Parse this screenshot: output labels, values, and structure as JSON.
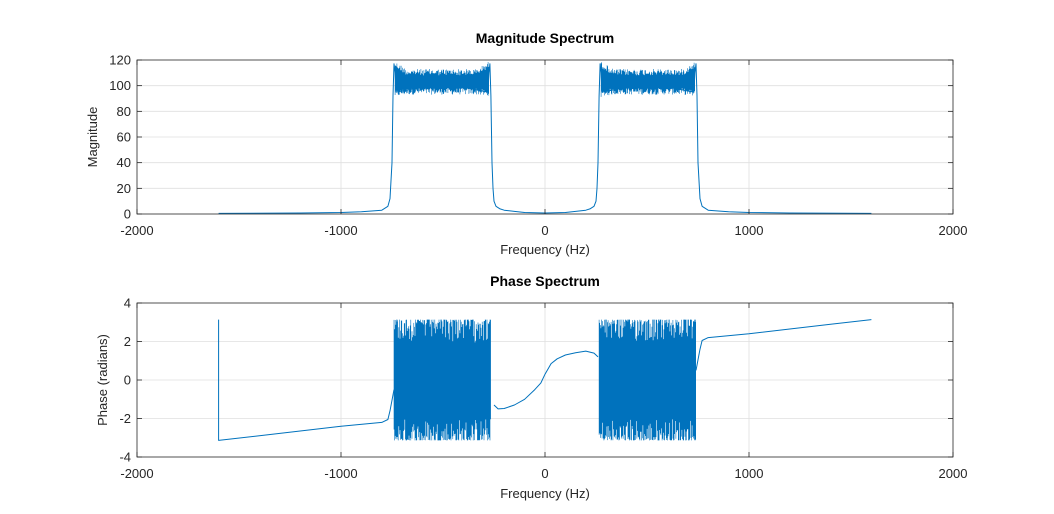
{
  "chart_data": [
    {
      "type": "line",
      "title": "Magnitude Spectrum",
      "xlabel": "Frequency (Hz)",
      "ylabel": "Magnitude",
      "xlim": [
        -2000,
        2000
      ],
      "ylim": [
        0,
        120
      ],
      "xticks": [
        -2000,
        -1000,
        0,
        1000,
        2000
      ],
      "yticks": [
        0,
        20,
        40,
        60,
        80,
        100,
        120
      ],
      "xtick_labels": [
        "-2000",
        "-1000",
        "0",
        "1000",
        "2000"
      ],
      "ytick_labels": [
        "0",
        "20",
        "40",
        "60",
        "80",
        "100",
        "120"
      ],
      "grid": true,
      "color": "#0072BD",
      "series": [
        {
          "x": [
            -1600,
            -1200,
            -1000,
            -900,
            -800,
            -770,
            -760,
            -750,
            -745,
            -740,
            -735,
            -730,
            -500,
            -280,
            -275,
            -270,
            -265,
            -260,
            -255,
            -250,
            -240,
            -220,
            -200,
            -150,
            -100,
            0,
            100,
            150,
            200,
            220,
            240,
            250,
            255,
            260,
            265,
            270,
            275,
            280,
            500,
            730,
            735,
            740,
            745,
            750,
            760,
            770,
            800,
            900,
            1000,
            1200,
            1600
          ],
          "y": [
            0.5,
            0.8,
            1.2,
            1.8,
            3,
            6,
            12,
            40,
            92,
            117,
            110,
            95,
            102,
            95,
            110,
            117,
            92,
            40,
            20,
            10,
            6,
            4,
            3,
            2,
            1.2,
            0.8,
            1.2,
            2,
            3,
            4,
            6,
            10,
            20,
            40,
            92,
            117,
            110,
            95,
            102,
            95,
            110,
            117,
            92,
            40,
            12,
            6,
            3,
            1.8,
            1.2,
            0.8,
            0.5
          ]
        }
      ],
      "bands": [
        {
          "x": [
            -735,
            -275
          ],
          "y": [
            93,
            113
          ]
        },
        {
          "x": [
            275,
            735
          ],
          "y": [
            93,
            113
          ]
        }
      ]
    },
    {
      "type": "line",
      "title": "Phase Spectrum",
      "xlabel": "Frequency (Hz)",
      "ylabel": "Phase (radians)",
      "xlim": [
        -2000,
        2000
      ],
      "ylim": [
        -4,
        4
      ],
      "xticks": [
        -2000,
        -1000,
        0,
        1000,
        2000
      ],
      "yticks": [
        -4,
        -2,
        0,
        2,
        4
      ],
      "xtick_labels": [
        "-2000",
        "-1000",
        "0",
        "1000",
        "2000"
      ],
      "ytick_labels": [
        "-4",
        "-2",
        "0",
        "2",
        "4"
      ],
      "grid": true,
      "color": "#0072BD",
      "series": [
        {
          "x": [
            -1600,
            -1600,
            -1400,
            -1200,
            -1000,
            -800,
            -770,
            -760,
            -740
          ],
          "y": [
            3.14,
            -3.14,
            -2.9,
            -2.65,
            -2.4,
            -2.2,
            -2.05,
            -1.6,
            -0.5
          ]
        },
        {
          "x": [
            -250,
            -230,
            -200,
            -150,
            -100,
            -50,
            -20,
            0,
            30,
            60,
            100,
            150,
            200,
            240,
            260
          ],
          "y": [
            -1.3,
            -1.5,
            -1.48,
            -1.3,
            -1.0,
            -0.5,
            -0.15,
            0.3,
            0.85,
            1.1,
            1.3,
            1.42,
            1.5,
            1.4,
            1.2
          ]
        },
        {
          "x": [
            740,
            760,
            770,
            800,
            1000,
            1200,
            1400,
            1600
          ],
          "y": [
            0.5,
            1.6,
            2.05,
            2.2,
            2.4,
            2.65,
            2.9,
            3.14
          ]
        }
      ],
      "bands": [
        {
          "x": [
            -740,
            -265
          ],
          "y": [
            -3.14,
            3.14
          ]
        },
        {
          "x": [
            265,
            740
          ],
          "y": [
            -3.14,
            3.14
          ]
        }
      ]
    }
  ]
}
